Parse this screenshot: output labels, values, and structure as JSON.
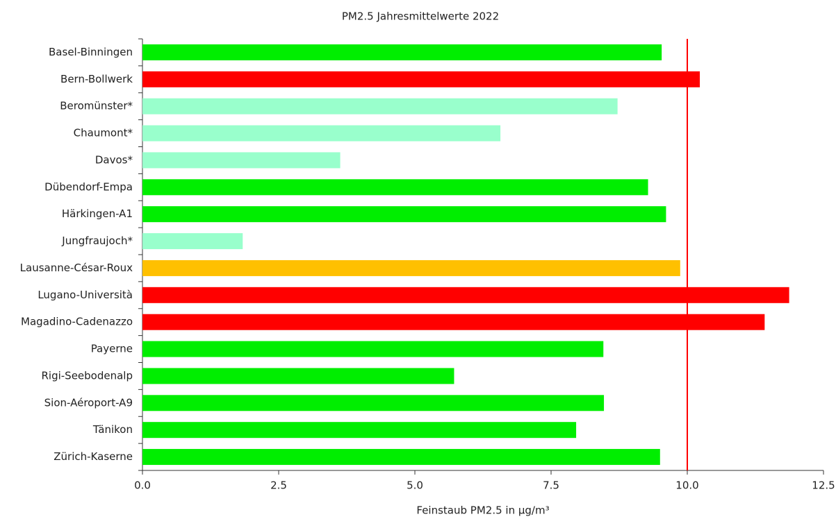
{
  "chart_data": {
    "type": "hbar",
    "title": "PM2.5  Jahresmittelwerte 2022",
    "x_label": "Feinstaub PM2.5 in µg/m³",
    "categories": [
      "Basel-Binningen",
      "Bern-Bollwerk",
      "Beromünster*",
      "Chaumont*",
      "Davos*",
      "Dübendorf-Empa",
      "Härkingen-A1",
      "Jungfraujoch*",
      "Lausanne-César-Roux",
      "Lugano-Università",
      "Magadino-Cadenazzo",
      "Payerne",
      "Rigi-Seebodenalp",
      "Sion-Aéroport-A9",
      "Tänikon",
      "Zürich-Kaserne"
    ],
    "values": [
      9.53,
      10.23,
      8.72,
      6.57,
      3.63,
      9.28,
      9.61,
      1.84,
      9.87,
      11.87,
      11.42,
      8.46,
      5.72,
      8.47,
      7.96,
      9.5
    ],
    "colors": [
      "#00ee00",
      "#ff0000",
      "#99ffcc",
      "#99ffcc",
      "#99ffcc",
      "#00ee00",
      "#00ee00",
      "#99ffcc",
      "#ffc000",
      "#ff0000",
      "#ff0000",
      "#00ee00",
      "#00ee00",
      "#00ee00",
      "#00ee00",
      "#00ee00"
    ],
    "xlim": [
      0,
      12.5
    ],
    "xticks": [
      {
        "value": 0,
        "label": "0.0"
      },
      2.5,
      {
        "value": 5,
        "label": "5.0"
      },
      7.5,
      {
        "value": 10,
        "label": "10.0"
      },
      12.5
    ],
    "reference_line": {
      "value": 10,
      "color": "#ff0000"
    },
    "grid": false
  }
}
